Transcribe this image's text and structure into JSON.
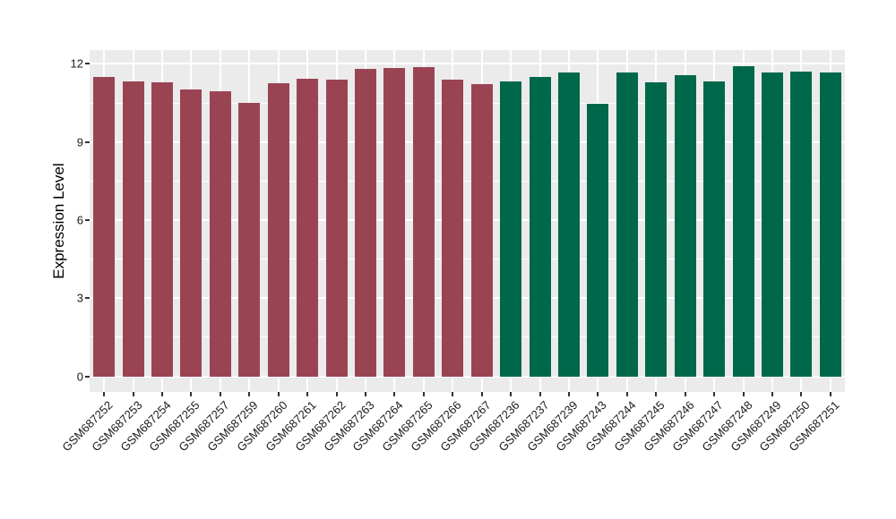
{
  "figure": {
    "background": "#FFFFFF",
    "panel_background": "#EBEBEB",
    "grid_color": "#FFFFFF",
    "tick_mark_color": "#333333",
    "axis_text_color": "#1a1a1a"
  },
  "chart_data": {
    "type": "bar",
    "title": "",
    "xlabel": "",
    "ylabel": "Expression Level",
    "ylim": [
      0,
      12.5
    ],
    "yticks": [
      0,
      3,
      6,
      9,
      12
    ],
    "yticks_minor": [
      1.5,
      4.5,
      7.5,
      10.5
    ],
    "grid": "on",
    "legend_position": "none",
    "x_tick_rotation": 45,
    "series": [
      {
        "name": "group-1-maroon",
        "color": "#9A4453",
        "categories": [
          "GSM687252",
          "GSM687253",
          "GSM687254",
          "GSM687255",
          "GSM687257",
          "GSM687259",
          "GSM687260",
          "GSM687261",
          "GSM687262",
          "GSM687263",
          "GSM687264",
          "GSM687265",
          "GSM687266",
          "GSM687267"
        ],
        "values": [
          11.49,
          11.32,
          11.28,
          11.02,
          10.95,
          10.51,
          11.27,
          11.44,
          11.4,
          11.82,
          11.83,
          11.87,
          11.41,
          11.21
        ]
      },
      {
        "name": "group-2-green",
        "color": "#00684A",
        "categories": [
          "GSM687236",
          "GSM687237",
          "GSM687239",
          "GSM687243",
          "GSM687244",
          "GSM687245",
          "GSM687246",
          "GSM687247",
          "GSM687248",
          "GSM687249",
          "GSM687250",
          "GSM687251"
        ],
        "values": [
          11.32,
          11.49,
          11.67,
          10.48,
          11.66,
          11.31,
          11.58,
          11.33,
          11.9,
          11.68,
          11.69,
          11.66
        ]
      }
    ]
  }
}
